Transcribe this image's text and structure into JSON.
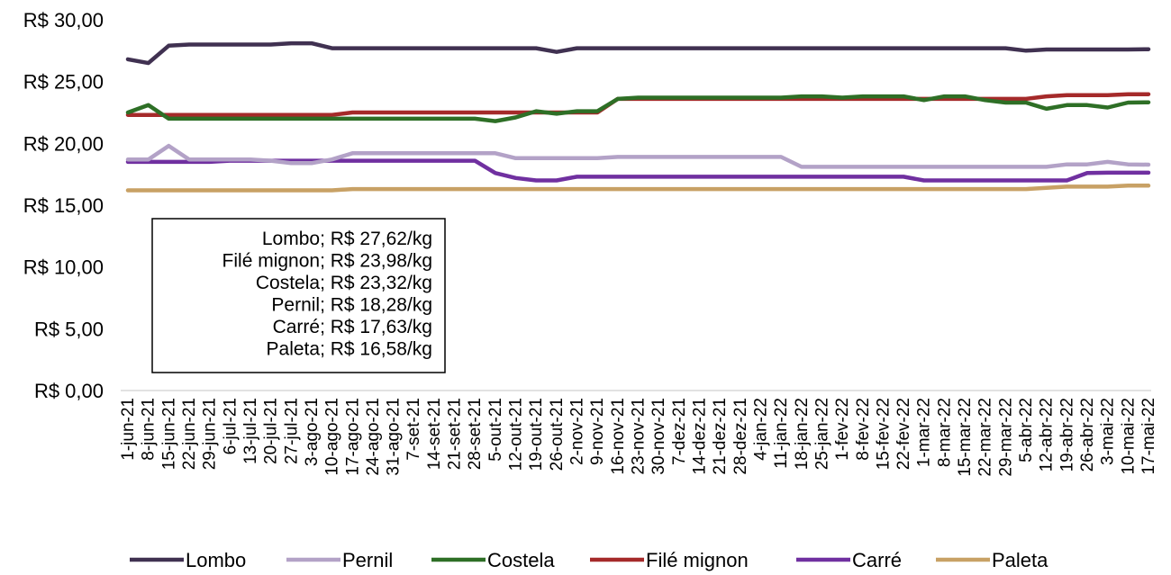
{
  "chart_data": {
    "type": "line",
    "title": "",
    "xlabel": "",
    "ylabel": "",
    "ylim": [
      0,
      30
    ],
    "y_ticks": [
      "R$ 0,00",
      "R$ 5,00",
      "R$ 10,00",
      "R$ 15,00",
      "R$ 20,00",
      "R$ 25,00",
      "R$ 30,00"
    ],
    "y_tick_values": [
      0,
      5,
      10,
      15,
      20,
      25,
      30
    ],
    "grid": false,
    "legend_position": "bottom",
    "x": [
      "1-jun-21",
      "8-jun-21",
      "15-jun-21",
      "22-jun-21",
      "29-jun-21",
      "6-jul-21",
      "13-jul-21",
      "20-jul-21",
      "27-jul-21",
      "3-ago-21",
      "10-ago-21",
      "17-ago-21",
      "24-ago-21",
      "31-ago-21",
      "7-set-21",
      "14-set-21",
      "21-set-21",
      "28-set-21",
      "5-out-21",
      "12-out-21",
      "19-out-21",
      "26-out-21",
      "2-nov-21",
      "9-nov-21",
      "16-nov-21",
      "23-nov-21",
      "30-nov-21",
      "7-dez-21",
      "14-dez-21",
      "21-dez-21",
      "28-dez-21",
      "4-jan-22",
      "11-jan-22",
      "18-jan-22",
      "25-jan-22",
      "1-fev-22",
      "8-fev-22",
      "15-fev-22",
      "22-fev-22",
      "1-mar-22",
      "8-mar-22",
      "15-mar-22",
      "22-mar-22",
      "29-mar-22",
      "5-abr-22",
      "12-abr-22",
      "19-abr-22",
      "26-abr-22",
      "3-mai-22",
      "10-mai-22",
      "17-mai-22"
    ],
    "series": [
      {
        "name": "Lombo",
        "color": "#403151",
        "values": [
          26.8,
          26.5,
          27.9,
          28.0,
          28.0,
          28.0,
          28.0,
          28.0,
          28.1,
          28.1,
          27.7,
          27.7,
          27.7,
          27.7,
          27.7,
          27.7,
          27.7,
          27.7,
          27.7,
          27.7,
          27.7,
          27.4,
          27.7,
          27.7,
          27.7,
          27.7,
          27.7,
          27.7,
          27.7,
          27.7,
          27.7,
          27.7,
          27.7,
          27.7,
          27.7,
          27.7,
          27.7,
          27.7,
          27.7,
          27.7,
          27.7,
          27.7,
          27.7,
          27.7,
          27.5,
          27.6,
          27.6,
          27.6,
          27.6,
          27.6,
          27.62
        ]
      },
      {
        "name": "Pernil",
        "color": "#B3A2C7",
        "values": [
          18.7,
          18.7,
          19.8,
          18.7,
          18.7,
          18.7,
          18.7,
          18.6,
          18.4,
          18.4,
          18.7,
          19.2,
          19.2,
          19.2,
          19.2,
          19.2,
          19.2,
          19.2,
          19.2,
          18.8,
          18.8,
          18.8,
          18.8,
          18.8,
          18.9,
          18.9,
          18.9,
          18.9,
          18.9,
          18.9,
          18.9,
          18.9,
          18.9,
          18.1,
          18.1,
          18.1,
          18.1,
          18.1,
          18.1,
          18.1,
          18.1,
          18.1,
          18.1,
          18.1,
          18.1,
          18.1,
          18.3,
          18.3,
          18.5,
          18.3,
          18.28
        ]
      },
      {
        "name": "Costela",
        "color": "#2E6F26",
        "values": [
          22.5,
          23.1,
          22.0,
          22.0,
          22.0,
          22.0,
          22.0,
          22.0,
          22.0,
          22.0,
          22.0,
          22.0,
          22.0,
          22.0,
          22.0,
          22.0,
          22.0,
          22.0,
          21.8,
          22.1,
          22.6,
          22.4,
          22.6,
          22.6,
          23.6,
          23.7,
          23.7,
          23.7,
          23.7,
          23.7,
          23.7,
          23.7,
          23.7,
          23.8,
          23.8,
          23.7,
          23.8,
          23.8,
          23.8,
          23.5,
          23.8,
          23.8,
          23.5,
          23.3,
          23.3,
          22.8,
          23.1,
          23.1,
          22.9,
          23.3,
          23.32
        ]
      },
      {
        "name": "Filé mignon",
        "color": "#A52A2A",
        "values": [
          22.3,
          22.3,
          22.3,
          22.3,
          22.3,
          22.3,
          22.3,
          22.3,
          22.3,
          22.3,
          22.3,
          22.5,
          22.5,
          22.5,
          22.5,
          22.5,
          22.5,
          22.5,
          22.5,
          22.5,
          22.5,
          22.5,
          22.5,
          22.5,
          23.6,
          23.6,
          23.6,
          23.6,
          23.6,
          23.6,
          23.6,
          23.6,
          23.6,
          23.6,
          23.6,
          23.6,
          23.6,
          23.6,
          23.6,
          23.6,
          23.6,
          23.6,
          23.6,
          23.6,
          23.6,
          23.8,
          23.9,
          23.9,
          23.9,
          23.98,
          23.98
        ]
      },
      {
        "name": "Carré",
        "color": "#7030A0",
        "values": [
          18.5,
          18.5,
          18.5,
          18.5,
          18.5,
          18.6,
          18.6,
          18.6,
          18.6,
          18.6,
          18.6,
          18.6,
          18.6,
          18.6,
          18.6,
          18.6,
          18.6,
          18.6,
          17.6,
          17.2,
          17.0,
          17.0,
          17.3,
          17.3,
          17.3,
          17.3,
          17.3,
          17.3,
          17.3,
          17.3,
          17.3,
          17.3,
          17.3,
          17.3,
          17.3,
          17.3,
          17.3,
          17.3,
          17.3,
          17.0,
          17.0,
          17.0,
          17.0,
          17.0,
          17.0,
          17.0,
          17.0,
          17.6,
          17.63,
          17.63,
          17.63
        ]
      },
      {
        "name": "Paleta",
        "color": "#C8A165",
        "values": [
          16.2,
          16.2,
          16.2,
          16.2,
          16.2,
          16.2,
          16.2,
          16.2,
          16.2,
          16.2,
          16.2,
          16.3,
          16.3,
          16.3,
          16.3,
          16.3,
          16.3,
          16.3,
          16.3,
          16.3,
          16.3,
          16.3,
          16.3,
          16.3,
          16.3,
          16.3,
          16.3,
          16.3,
          16.3,
          16.3,
          16.3,
          16.3,
          16.3,
          16.3,
          16.3,
          16.3,
          16.3,
          16.3,
          16.3,
          16.3,
          16.3,
          16.3,
          16.3,
          16.3,
          16.3,
          16.4,
          16.5,
          16.5,
          16.5,
          16.58,
          16.58
        ]
      }
    ],
    "annotation_lines": [
      "Lombo; R$ 27,62/kg",
      "Filé mignon; R$ 23,98/kg",
      "Costela; R$ 23,32/kg",
      "Pernil; R$ 18,28/kg",
      "Carré; R$ 17,63/kg",
      "Paleta; R$ 16,58/kg"
    ]
  }
}
